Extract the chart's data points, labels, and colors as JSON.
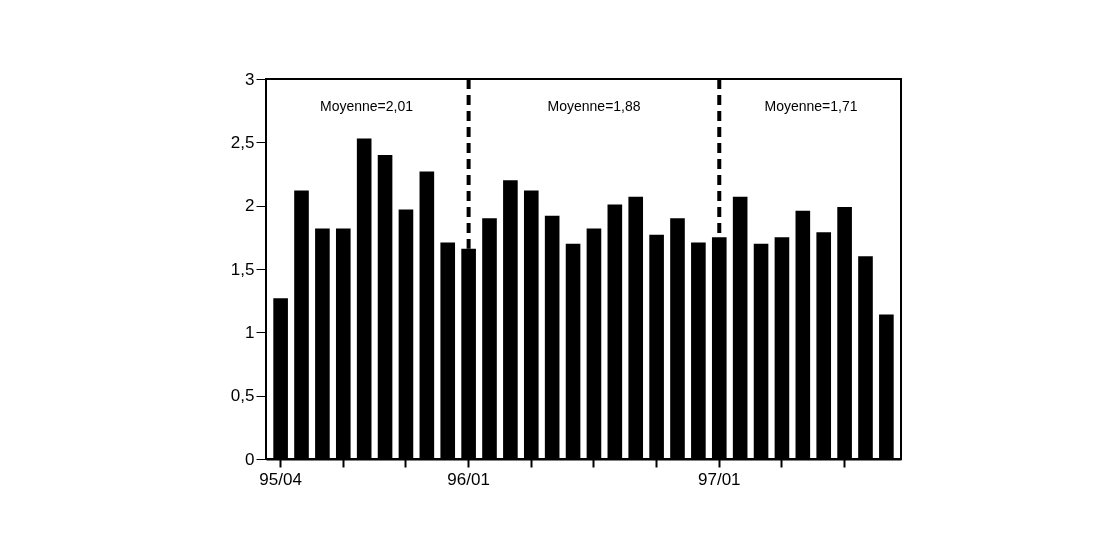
{
  "chart_data": {
    "type": "bar",
    "categories": [
      "95/04",
      null,
      null,
      null,
      null,
      null,
      null,
      null,
      null,
      "96/01",
      null,
      null,
      null,
      null,
      null,
      null,
      null,
      null,
      null,
      null,
      null,
      "97/01",
      null,
      null,
      null,
      null,
      null,
      null,
      null,
      null
    ],
    "values": [
      1.27,
      2.12,
      1.82,
      1.82,
      2.53,
      2.4,
      1.97,
      2.27,
      1.71,
      1.66,
      1.9,
      2.2,
      2.12,
      1.92,
      1.7,
      1.82,
      2.01,
      2.07,
      1.77,
      1.9,
      1.71,
      1.75,
      2.07,
      1.7,
      1.75,
      1.96,
      1.79,
      1.99,
      1.6,
      1.14
    ],
    "color": "#000000",
    "ylim": [
      0,
      3
    ],
    "yticks": [
      0,
      {
        "value": 0.5,
        "label": "0,5"
      },
      1,
      {
        "value": 1.5,
        "label": "1,5"
      },
      2,
      {
        "value": 2.5,
        "label": "2,5"
      },
      3
    ],
    "ref_lines": [
      {
        "axis": "x",
        "value": "96/01",
        "line_style": "dashed"
      },
      {
        "axis": "x",
        "value": "97/01",
        "line_style": "dashed"
      }
    ],
    "annotations": [
      "Moyenne=2,01",
      "Moyenne=1,88",
      "Moyenne=1,71"
    ],
    "grid": false
  }
}
